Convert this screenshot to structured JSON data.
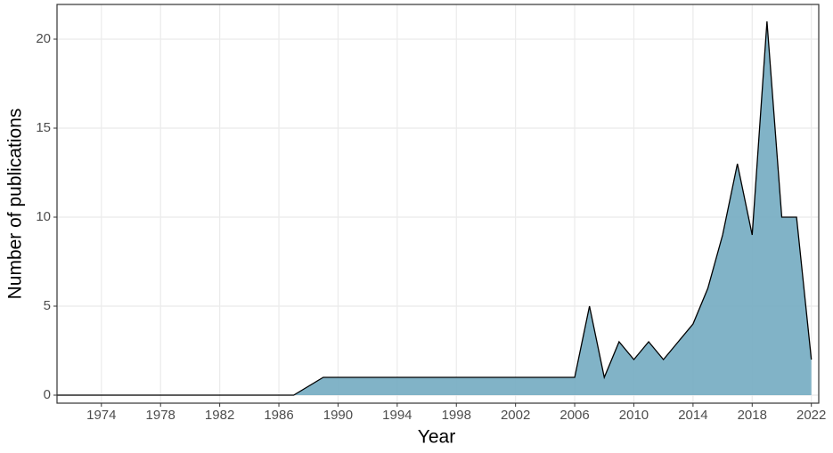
{
  "chart_data": {
    "type": "area",
    "x_label": "Year",
    "y_label": "Number of publications",
    "x": [
      1971,
      1972,
      1973,
      1974,
      1975,
      1976,
      1977,
      1978,
      1979,
      1980,
      1981,
      1982,
      1983,
      1984,
      1985,
      1986,
      1987,
      1989,
      1990,
      1991,
      1992,
      1993,
      1994,
      1995,
      1996,
      1997,
      1998,
      1999,
      2000,
      2001,
      2002,
      2003,
      2004,
      2005,
      2006,
      2007,
      2008,
      2009,
      2010,
      2011,
      2012,
      2013,
      2014,
      2015,
      2016,
      2017,
      2018,
      2019,
      2020,
      2021,
      2022
    ],
    "values": [
      0,
      0,
      0,
      0,
      0,
      0,
      0,
      0,
      0,
      0,
      0,
      0,
      0,
      0,
      0,
      0,
      0,
      1,
      1,
      1,
      1,
      1,
      1,
      1,
      1,
      1,
      1,
      1,
      1,
      1,
      1,
      1,
      1,
      1,
      1,
      5,
      1,
      3,
      2,
      3,
      2,
      3,
      4,
      6,
      9,
      13,
      9,
      21,
      10,
      10,
      2
    ],
    "color": "#7aafc4",
    "line_color": "#000000",
    "xlim": [
      1971,
      2022.5
    ],
    "ylim": [
      -0.45,
      21.95
    ],
    "xticks": [
      1974,
      1978,
      1982,
      1986,
      1990,
      1994,
      1998,
      2002,
      2006,
      2010,
      2014,
      2018,
      2022
    ],
    "yticks": [
      0,
      5,
      10,
      15,
      20
    ],
    "grid": true
  }
}
